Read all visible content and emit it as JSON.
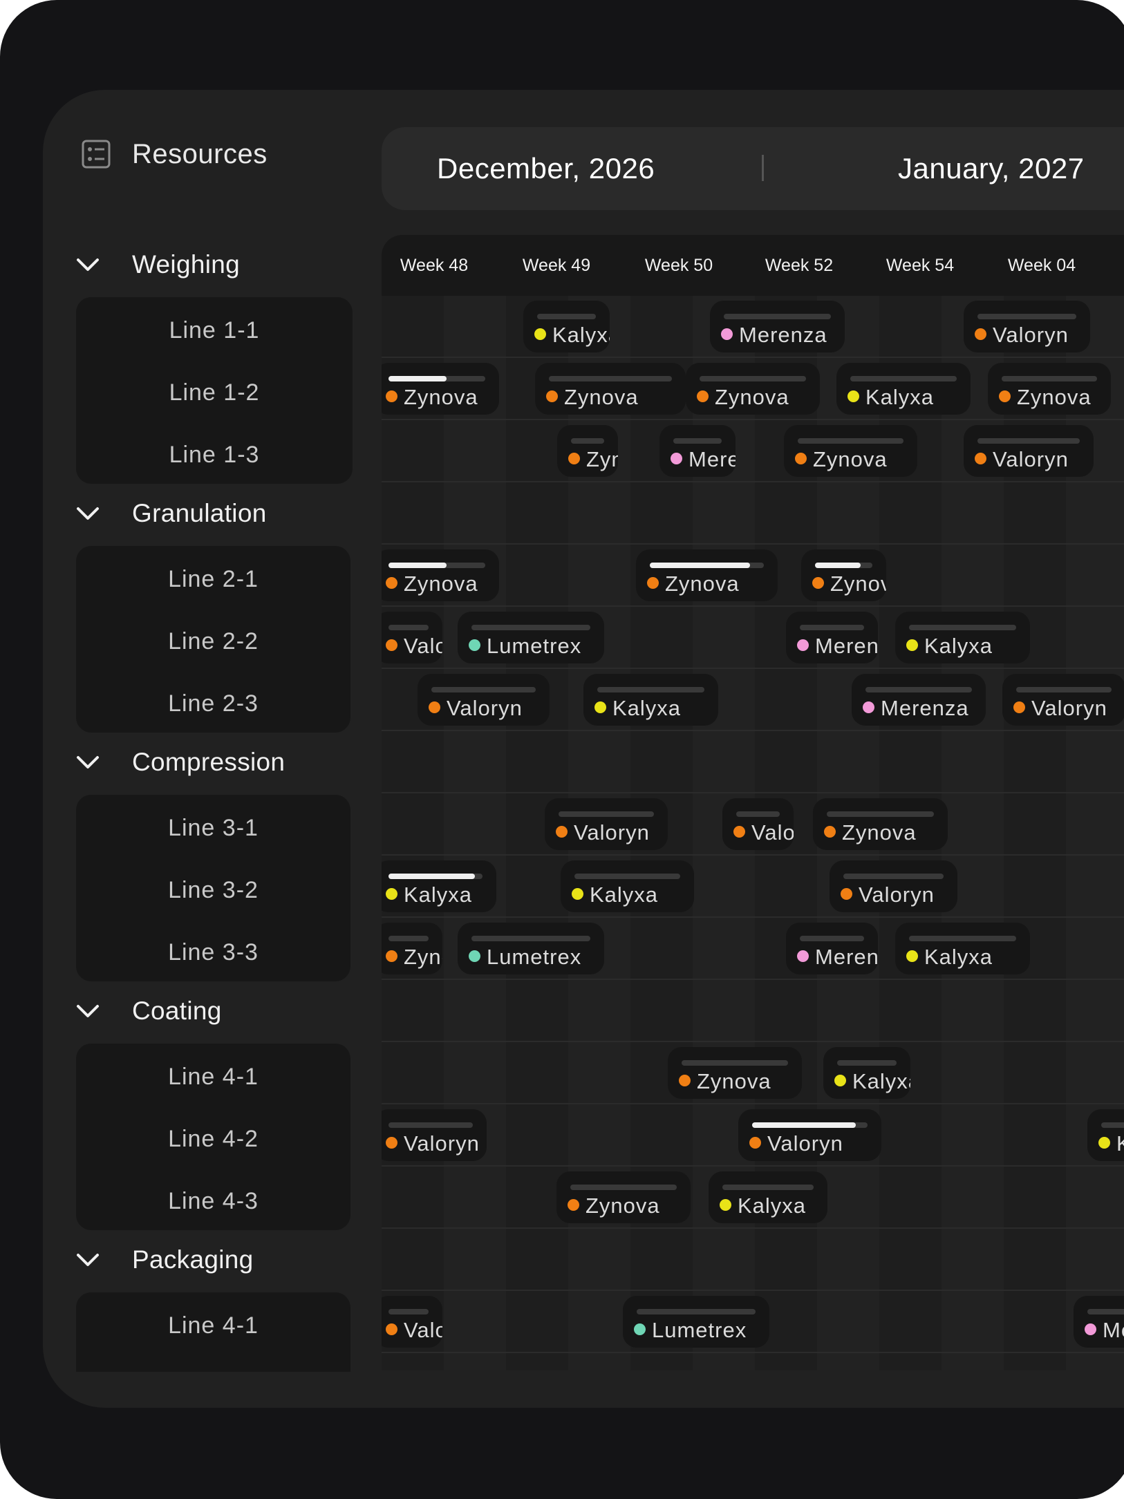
{
  "sidebar": {
    "title": "Resources",
    "icon": "resources-list-icon",
    "groups": [
      {
        "name": "Weighing",
        "lines": [
          "Line 1-1",
          "Line 1-2",
          "Line 1-3"
        ]
      },
      {
        "name": "Granulation",
        "lines": [
          "Line 2-1",
          "Line 2-2",
          "Line 2-3"
        ]
      },
      {
        "name": "Compression",
        "lines": [
          "Line 3-1",
          "Line 3-2",
          "Line 3-3"
        ]
      },
      {
        "name": "Coating",
        "lines": [
          "Line 4-1",
          "Line 4-2",
          "Line 4-3"
        ]
      },
      {
        "name": "Packaging",
        "lines": [
          "Line 4-1"
        ]
      }
    ]
  },
  "header": {
    "months": [
      "December, 2026",
      "January, 2027"
    ],
    "weeks": [
      "Week 48",
      "Week 49",
      "Week 50",
      "Week 52",
      "Week 54",
      "Week 04"
    ]
  },
  "colors": {
    "Zynova": "#f07f14",
    "Valoryn": "#f07f14",
    "Kalyxa": "#e9e318",
    "Merenza": "#f29ad8",
    "Lumetrex": "#6fd6b5"
  },
  "tasks": {
    "Line 1-1": [
      {
        "label": "Kalyxa",
        "progress": 0
      },
      {
        "label": "Merenza",
        "progress": 0
      },
      {
        "label": "Valoryn",
        "progress": 0
      }
    ],
    "Line 1-2": [
      {
        "label": "Zynova",
        "progress": 0.6
      },
      {
        "label": "Zynova",
        "progress": 0
      },
      {
        "label": "Zynova",
        "progress": 0
      },
      {
        "label": "Kalyxa",
        "progress": 0
      },
      {
        "label": "Zynova",
        "progress": 0
      }
    ],
    "Line 1-3": [
      {
        "label": "Zynova",
        "progress": 0
      },
      {
        "label": "Merenza",
        "progress": 0
      },
      {
        "label": "Zynova",
        "progress": 0
      },
      {
        "label": "Valoryn",
        "progress": 0
      }
    ],
    "Line 2-1": [
      {
        "label": "Zynova",
        "progress": 0.6
      },
      {
        "label": "Zynova",
        "progress": 0.88
      },
      {
        "label": "Zynova",
        "progress": 0.8
      }
    ],
    "Line 2-2": [
      {
        "label": "Valoryn",
        "progress": 0
      },
      {
        "label": "Lumetrex",
        "progress": 0
      },
      {
        "label": "Merenza",
        "progress": 0
      },
      {
        "label": "Kalyxa",
        "progress": 0
      }
    ],
    "Line 2-3": [
      {
        "label": "Valoryn",
        "progress": 0
      },
      {
        "label": "Kalyxa",
        "progress": 0
      },
      {
        "label": "Merenza",
        "progress": 0
      },
      {
        "label": "Valoryn",
        "progress": 0
      }
    ],
    "Line 3-1": [
      {
        "label": "Valoryn",
        "progress": 0
      },
      {
        "label": "Valoryn",
        "progress": 0
      },
      {
        "label": "Zynova",
        "progress": 0
      }
    ],
    "Line 3-2": [
      {
        "label": "Kalyxa",
        "progress": 0.92
      },
      {
        "label": "Kalyxa",
        "progress": 0
      },
      {
        "label": "Valoryn",
        "progress": 0
      }
    ],
    "Line 3-3": [
      {
        "label": "Zynova",
        "progress": 0
      },
      {
        "label": "Lumetrex",
        "progress": 0
      },
      {
        "label": "Merenza",
        "progress": 0
      },
      {
        "label": "Kalyxa",
        "progress": 0
      }
    ],
    "Line 4-1": [
      {
        "label": "Zynova",
        "progress": 0
      },
      {
        "label": "Kalyxa",
        "progress": 0
      }
    ],
    "Line 4-2": [
      {
        "label": "Valoryn",
        "progress": 0
      },
      {
        "label": "Valoryn",
        "progress": 0.9
      },
      {
        "label": "Kalyxa",
        "progress": 0
      }
    ],
    "Line 4-3": [
      {
        "label": "Zynova",
        "progress": 0
      },
      {
        "label": "Kalyxa",
        "progress": 0
      }
    ],
    "Packaging Line 4-1": [
      {
        "label": "Valoryn",
        "progress": 0
      },
      {
        "label": "Lumetrex",
        "progress": 0
      },
      {
        "label": "Merenza",
        "progress": 0
      }
    ]
  }
}
